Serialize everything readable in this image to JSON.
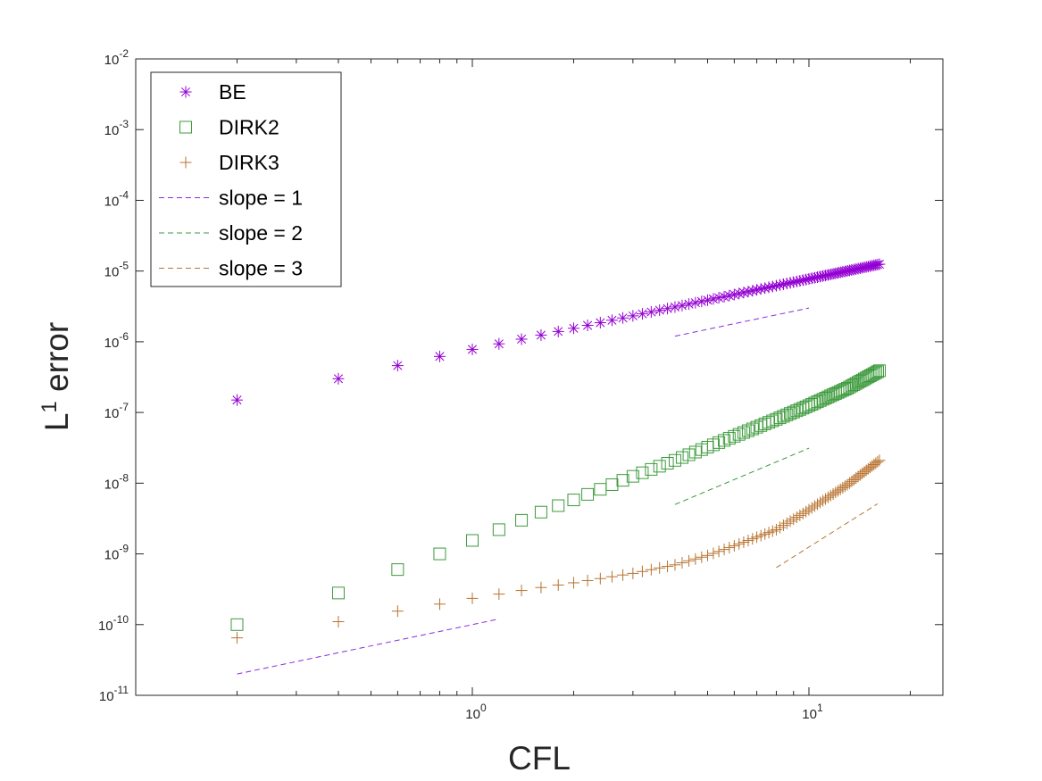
{
  "chart_data": {
    "type": "scatter",
    "xscale": "log",
    "yscale": "log",
    "xlim": [
      0.1,
      25
    ],
    "ylim": [
      1e-11,
      0.01
    ],
    "xlabel": "CFL",
    "ylabel": "L",
    "ylabel_sup": "1",
    "ylabel_suffix": " error",
    "xticks": [
      {
        "value": 1,
        "base": "10",
        "exp": "0"
      },
      {
        "value": 10,
        "base": "10",
        "exp": "1"
      }
    ],
    "yticks": [
      {
        "value": 1e-11,
        "base": "10",
        "exp": "-11"
      },
      {
        "value": 1e-10,
        "base": "10",
        "exp": "-10"
      },
      {
        "value": 1e-09,
        "base": "10",
        "exp": "-9"
      },
      {
        "value": 1e-08,
        "base": "10",
        "exp": "-8"
      },
      {
        "value": 1e-07,
        "base": "10",
        "exp": "-7"
      },
      {
        "value": 1e-06,
        "base": "10",
        "exp": "-6"
      },
      {
        "value": 1e-05,
        "base": "10",
        "exp": "-5"
      },
      {
        "value": 0.0001,
        "base": "10",
        "exp": "-4"
      },
      {
        "value": 0.001,
        "base": "10",
        "exp": "-3"
      },
      {
        "value": 0.01,
        "base": "10",
        "exp": "-2"
      }
    ],
    "legend_position": "top-left",
    "series": [
      {
        "name": "BE",
        "marker": "asterisk",
        "color": "#9400D3",
        "x_start": 0.2,
        "x_step": 0.2,
        "count": 81,
        "points": [
          [
            0.2,
            1.5e-07
          ],
          [
            0.4,
            3e-07
          ],
          [
            0.6,
            4.6e-07
          ],
          [
            0.8,
            6.2e-07
          ],
          [
            1.0,
            7.8e-07
          ],
          [
            2.0,
            1.55e-06
          ],
          [
            4.0,
            3.1e-06
          ],
          [
            8.0,
            6.2e-06
          ],
          [
            16.2,
            1.25e-05
          ]
        ]
      },
      {
        "name": "DIRK2",
        "marker": "square",
        "color": "#3C9A3C",
        "x_start": 0.2,
        "x_step": 0.2,
        "count": 81,
        "points": [
          [
            0.2,
            1e-10
          ],
          [
            0.4,
            2.8e-10
          ],
          [
            0.6,
            6e-10
          ],
          [
            0.8,
            1e-09
          ],
          [
            1.0,
            1.55e-09
          ],
          [
            1.2,
            2.2e-09
          ],
          [
            1.6,
            3.9e-09
          ],
          [
            2.0,
            5.8e-09
          ],
          [
            3.0,
            1.25e-08
          ],
          [
            4.0,
            2.1e-08
          ],
          [
            6.0,
            4.6e-08
          ],
          [
            8.0,
            8e-08
          ],
          [
            10.0,
            1.25e-07
          ],
          [
            13.0,
            2.2e-07
          ],
          [
            16.2,
            3.9e-07
          ]
        ]
      },
      {
        "name": "DIRK3",
        "marker": "plus",
        "color": "#B8722E",
        "x_start": 0.2,
        "x_step": 0.2,
        "count": 81,
        "points": [
          [
            0.2,
            6.5e-11
          ],
          [
            0.4,
            1.1e-10
          ],
          [
            0.6,
            1.55e-10
          ],
          [
            0.8,
            1.95e-10
          ],
          [
            1.0,
            2.35e-10
          ],
          [
            1.5,
            3.2e-10
          ],
          [
            2.0,
            3.9e-10
          ],
          [
            3.0,
            5.3e-10
          ],
          [
            4.0,
            7e-10
          ],
          [
            5.0,
            9.5e-10
          ],
          [
            6.0,
            1.3e-09
          ],
          [
            8.0,
            2.2e-09
          ],
          [
            10.0,
            4.2e-09
          ],
          [
            13.0,
            9.5e-09
          ],
          [
            16.2,
            2.1e-08
          ]
        ]
      },
      {
        "name": "slope = 1",
        "line": "dashed",
        "color": "#8A2BE2",
        "segments": [
          {
            "x": [
              0.2,
              1.2
            ],
            "y": [
              2e-11,
              1.2e-10
            ]
          },
          {
            "x": [
              4.0,
              10.0
            ],
            "y": [
              1.2e-06,
              3e-06
            ]
          }
        ]
      },
      {
        "name": "slope = 2",
        "line": "dashed",
        "color": "#3C9A3C",
        "segments": [
          {
            "x": [
              4.0,
              10.0
            ],
            "y": [
              5e-09,
              3.125e-08
            ]
          }
        ]
      },
      {
        "name": "slope = 3",
        "line": "dashed",
        "color": "#B8722E",
        "segments": [
          {
            "x": [
              8.0,
              16.0
            ],
            "y": [
              6.4e-10,
              5.12e-09
            ]
          }
        ]
      }
    ]
  }
}
